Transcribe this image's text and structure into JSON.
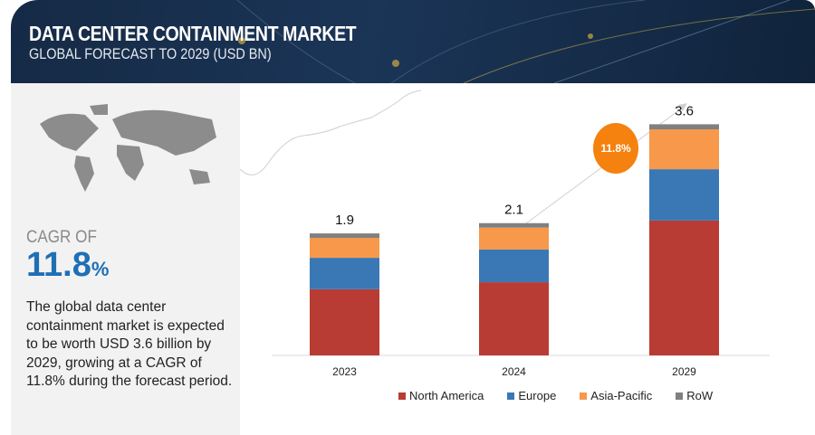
{
  "header": {
    "title": "DATA CENTER CONTAINMENT MARKET",
    "subtitle": "GLOBAL FORECAST TO 2029 (USD BN)"
  },
  "summary": {
    "cagr_label": "CAGR OF",
    "cagr_value": "11.8",
    "cagr_unit": "%",
    "description": "The global data center containment market is expected to be worth USD 3.6 billion by 2029, growing at a CAGR of 11.8% during the forecast period."
  },
  "badge": {
    "text": "11.8%",
    "color": "#f5810f"
  },
  "chart_data": {
    "type": "bar",
    "stacked": true,
    "categories": [
      "2023",
      "2024",
      "2029"
    ],
    "totals": [
      "1.9",
      "2.1",
      "3.6"
    ],
    "series": [
      {
        "name": "North America",
        "color": "#b83c33",
        "values": [
          1.03,
          1.14,
          2.1
        ]
      },
      {
        "name": "Europe",
        "color": "#3a78b5",
        "values": [
          0.49,
          0.51,
          0.8
        ]
      },
      {
        "name": "Asia-Pacific",
        "color": "#f7984a",
        "values": [
          0.31,
          0.34,
          0.62
        ]
      },
      {
        "name": "RoW",
        "color": "#808080",
        "values": [
          0.07,
          0.07,
          0.08
        ]
      }
    ],
    "ylim": [
      0,
      4.3
    ],
    "grid": false,
    "legend": "bottom"
  }
}
